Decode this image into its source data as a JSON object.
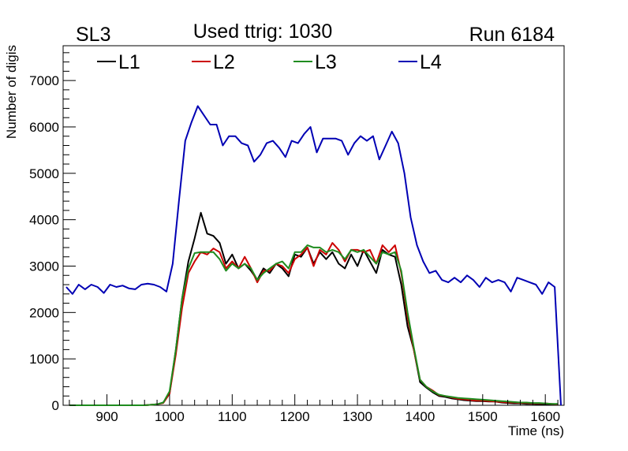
{
  "header": {
    "left": "SL3",
    "center": "Used ttrig: 1030",
    "right": "Run 6184"
  },
  "chart_data": {
    "type": "line",
    "title": "Used ttrig: 1030",
    "xlabel": "Time (ns)",
    "ylabel": "Number of digis",
    "xlim": [
      830,
      1630
    ],
    "ylim": [
      0,
      7750
    ],
    "x_ticks": [
      900,
      1000,
      1100,
      1200,
      1300,
      1400,
      1500,
      1600
    ],
    "y_ticks": [
      0,
      1000,
      2000,
      3000,
      4000,
      5000,
      6000,
      7000
    ],
    "grid": false,
    "legend_position": "top-left",
    "series": [
      {
        "name": "L1",
        "color": "#000000",
        "points": [
          [
            840,
            0
          ],
          [
            960,
            0
          ],
          [
            980,
            20
          ],
          [
            990,
            60
          ],
          [
            1000,
            250
          ],
          [
            1010,
            1200
          ],
          [
            1020,
            2300
          ],
          [
            1030,
            3100
          ],
          [
            1040,
            3600
          ],
          [
            1050,
            4150
          ],
          [
            1060,
            3700
          ],
          [
            1070,
            3650
          ],
          [
            1080,
            3500
          ],
          [
            1090,
            3050
          ],
          [
            1100,
            3250
          ],
          [
            1110,
            2950
          ],
          [
            1120,
            3050
          ],
          [
            1130,
            2900
          ],
          [
            1140,
            2700
          ],
          [
            1150,
            2950
          ],
          [
            1160,
            2850
          ],
          [
            1170,
            3050
          ],
          [
            1180,
            2950
          ],
          [
            1190,
            2780
          ],
          [
            1200,
            3250
          ],
          [
            1210,
            3200
          ],
          [
            1220,
            3400
          ],
          [
            1230,
            3050
          ],
          [
            1240,
            3300
          ],
          [
            1250,
            3150
          ],
          [
            1260,
            3300
          ],
          [
            1270,
            3050
          ],
          [
            1280,
            2950
          ],
          [
            1290,
            3250
          ],
          [
            1300,
            3000
          ],
          [
            1310,
            3350
          ],
          [
            1320,
            3100
          ],
          [
            1330,
            2850
          ],
          [
            1340,
            3350
          ],
          [
            1350,
            3250
          ],
          [
            1360,
            3200
          ],
          [
            1370,
            2600
          ],
          [
            1380,
            1700
          ],
          [
            1390,
            1200
          ],
          [
            1400,
            500
          ],
          [
            1410,
            380
          ],
          [
            1420,
            280
          ],
          [
            1430,
            200
          ],
          [
            1440,
            180
          ],
          [
            1450,
            150
          ],
          [
            1460,
            130
          ],
          [
            1470,
            110
          ],
          [
            1480,
            100
          ],
          [
            1490,
            90
          ],
          [
            1500,
            90
          ],
          [
            1510,
            80
          ],
          [
            1520,
            80
          ],
          [
            1530,
            60
          ],
          [
            1540,
            50
          ],
          [
            1550,
            40
          ],
          [
            1560,
            40
          ],
          [
            1570,
            30
          ],
          [
            1580,
            30
          ],
          [
            1590,
            20
          ],
          [
            1600,
            20
          ],
          [
            1610,
            20
          ],
          [
            1620,
            20
          ]
        ]
      },
      {
        "name": "L2",
        "color": "#cc0000",
        "points": [
          [
            840,
            0
          ],
          [
            960,
            0
          ],
          [
            980,
            20
          ],
          [
            990,
            50
          ],
          [
            1000,
            250
          ],
          [
            1010,
            1100
          ],
          [
            1020,
            2100
          ],
          [
            1030,
            2850
          ],
          [
            1040,
            3100
          ],
          [
            1050,
            3300
          ],
          [
            1060,
            3250
          ],
          [
            1070,
            3380
          ],
          [
            1080,
            3300
          ],
          [
            1090,
            2950
          ],
          [
            1100,
            3100
          ],
          [
            1110,
            2950
          ],
          [
            1120,
            3200
          ],
          [
            1130,
            2950
          ],
          [
            1140,
            2650
          ],
          [
            1150,
            2900
          ],
          [
            1160,
            2900
          ],
          [
            1170,
            3050
          ],
          [
            1180,
            3000
          ],
          [
            1190,
            2850
          ],
          [
            1200,
            3150
          ],
          [
            1210,
            3250
          ],
          [
            1220,
            3400
          ],
          [
            1230,
            3000
          ],
          [
            1240,
            3350
          ],
          [
            1250,
            3250
          ],
          [
            1260,
            3500
          ],
          [
            1270,
            3350
          ],
          [
            1280,
            3100
          ],
          [
            1290,
            3350
          ],
          [
            1300,
            3350
          ],
          [
            1310,
            3300
          ],
          [
            1320,
            3350
          ],
          [
            1330,
            3050
          ],
          [
            1340,
            3450
          ],
          [
            1350,
            3300
          ],
          [
            1360,
            3450
          ],
          [
            1370,
            2850
          ],
          [
            1380,
            1900
          ],
          [
            1390,
            1200
          ],
          [
            1400,
            550
          ],
          [
            1410,
            400
          ],
          [
            1420,
            320
          ],
          [
            1430,
            220
          ],
          [
            1440,
            200
          ],
          [
            1450,
            170
          ],
          [
            1460,
            140
          ],
          [
            1470,
            130
          ],
          [
            1480,
            110
          ],
          [
            1490,
            100
          ],
          [
            1500,
            100
          ],
          [
            1510,
            90
          ],
          [
            1520,
            80
          ],
          [
            1530,
            70
          ],
          [
            1540,
            60
          ],
          [
            1550,
            60
          ],
          [
            1560,
            50
          ],
          [
            1570,
            50
          ],
          [
            1580,
            40
          ],
          [
            1590,
            40
          ],
          [
            1600,
            40
          ],
          [
            1610,
            30
          ],
          [
            1620,
            20
          ]
        ]
      },
      {
        "name": "L3",
        "color": "#1f8c1f",
        "points": [
          [
            840,
            0
          ],
          [
            960,
            0
          ],
          [
            980,
            20
          ],
          [
            990,
            60
          ],
          [
            1000,
            300
          ],
          [
            1010,
            1200
          ],
          [
            1020,
            2300
          ],
          [
            1030,
            2950
          ],
          [
            1040,
            3280
          ],
          [
            1050,
            3300
          ],
          [
            1060,
            3300
          ],
          [
            1070,
            3300
          ],
          [
            1080,
            3150
          ],
          [
            1090,
            2900
          ],
          [
            1100,
            3050
          ],
          [
            1110,
            2950
          ],
          [
            1120,
            3050
          ],
          [
            1130,
            2950
          ],
          [
            1140,
            2700
          ],
          [
            1150,
            2850
          ],
          [
            1160,
            2950
          ],
          [
            1170,
            3050
          ],
          [
            1180,
            3100
          ],
          [
            1190,
            2950
          ],
          [
            1200,
            3300
          ],
          [
            1210,
            3300
          ],
          [
            1220,
            3450
          ],
          [
            1230,
            3400
          ],
          [
            1240,
            3400
          ],
          [
            1250,
            3300
          ],
          [
            1260,
            3350
          ],
          [
            1270,
            3300
          ],
          [
            1280,
            3150
          ],
          [
            1290,
            3350
          ],
          [
            1300,
            3300
          ],
          [
            1310,
            3350
          ],
          [
            1320,
            3200
          ],
          [
            1330,
            3050
          ],
          [
            1340,
            3300
          ],
          [
            1350,
            3250
          ],
          [
            1360,
            3300
          ],
          [
            1370,
            2900
          ],
          [
            1380,
            2000
          ],
          [
            1390,
            1250
          ],
          [
            1400,
            550
          ],
          [
            1410,
            400
          ],
          [
            1420,
            300
          ],
          [
            1430,
            230
          ],
          [
            1440,
            200
          ],
          [
            1450,
            180
          ],
          [
            1460,
            160
          ],
          [
            1470,
            150
          ],
          [
            1480,
            140
          ],
          [
            1490,
            130
          ],
          [
            1500,
            120
          ],
          [
            1510,
            110
          ],
          [
            1520,
            100
          ],
          [
            1530,
            90
          ],
          [
            1540,
            80
          ],
          [
            1550,
            70
          ],
          [
            1560,
            60
          ],
          [
            1570,
            60
          ],
          [
            1580,
            50
          ],
          [
            1590,
            50
          ],
          [
            1600,
            40
          ],
          [
            1610,
            30
          ],
          [
            1620,
            30
          ]
        ]
      },
      {
        "name": "L4",
        "color": "#0000b4",
        "points": [
          [
            835,
            2550
          ],
          [
            845,
            2400
          ],
          [
            855,
            2600
          ],
          [
            865,
            2500
          ],
          [
            875,
            2600
          ],
          [
            885,
            2550
          ],
          [
            895,
            2420
          ],
          [
            905,
            2600
          ],
          [
            915,
            2550
          ],
          [
            925,
            2580
          ],
          [
            935,
            2520
          ],
          [
            945,
            2500
          ],
          [
            955,
            2600
          ],
          [
            965,
            2620
          ],
          [
            975,
            2600
          ],
          [
            985,
            2550
          ],
          [
            995,
            2450
          ],
          [
            1005,
            3050
          ],
          [
            1015,
            4400
          ],
          [
            1025,
            5700
          ],
          [
            1035,
            6100
          ],
          [
            1045,
            6450
          ],
          [
            1055,
            6250
          ],
          [
            1065,
            6050
          ],
          [
            1075,
            6050
          ],
          [
            1085,
            5600
          ],
          [
            1095,
            5800
          ],
          [
            1105,
            5800
          ],
          [
            1115,
            5650
          ],
          [
            1125,
            5600
          ],
          [
            1135,
            5250
          ],
          [
            1145,
            5400
          ],
          [
            1155,
            5650
          ],
          [
            1165,
            5700
          ],
          [
            1175,
            5550
          ],
          [
            1185,
            5350
          ],
          [
            1195,
            5700
          ],
          [
            1205,
            5650
          ],
          [
            1215,
            5850
          ],
          [
            1225,
            6000
          ],
          [
            1235,
            5450
          ],
          [
            1245,
            5750
          ],
          [
            1255,
            5750
          ],
          [
            1265,
            5750
          ],
          [
            1275,
            5700
          ],
          [
            1285,
            5400
          ],
          [
            1295,
            5650
          ],
          [
            1305,
            5800
          ],
          [
            1315,
            5700
          ],
          [
            1325,
            5800
          ],
          [
            1335,
            5300
          ],
          [
            1345,
            5600
          ],
          [
            1355,
            5900
          ],
          [
            1365,
            5650
          ],
          [
            1375,
            5000
          ],
          [
            1385,
            4050
          ],
          [
            1395,
            3450
          ],
          [
            1405,
            3100
          ],
          [
            1415,
            2850
          ],
          [
            1425,
            2900
          ],
          [
            1435,
            2700
          ],
          [
            1445,
            2650
          ],
          [
            1455,
            2750
          ],
          [
            1465,
            2650
          ],
          [
            1475,
            2800
          ],
          [
            1485,
            2700
          ],
          [
            1495,
            2550
          ],
          [
            1505,
            2750
          ],
          [
            1515,
            2650
          ],
          [
            1525,
            2700
          ],
          [
            1535,
            2650
          ],
          [
            1545,
            2450
          ],
          [
            1555,
            2750
          ],
          [
            1565,
            2700
          ],
          [
            1575,
            2650
          ],
          [
            1585,
            2600
          ],
          [
            1595,
            2400
          ],
          [
            1605,
            2650
          ],
          [
            1615,
            2550
          ],
          [
            1625,
            0
          ]
        ]
      }
    ]
  }
}
